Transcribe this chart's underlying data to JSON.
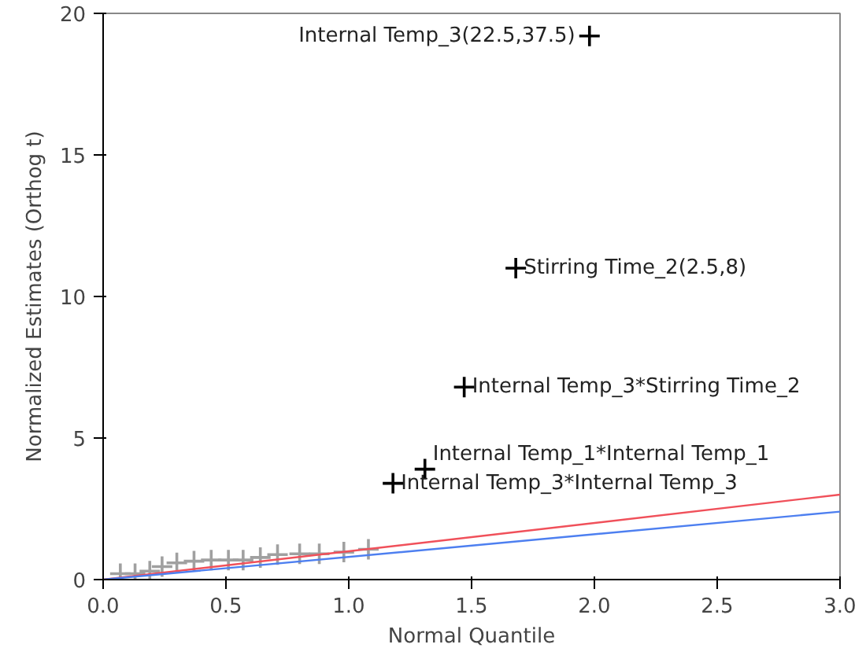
{
  "chart_data": {
    "type": "scatter",
    "xlabel": "Normal Quantile",
    "ylabel": "Normalized Estimates (Orthog t)",
    "xlim": [
      0,
      3
    ],
    "ylim": [
      0,
      20
    ],
    "xticks": [
      {
        "value": 0,
        "label": "0.0"
      },
      {
        "value": 0.5,
        "label": "0.5"
      },
      {
        "value": 1,
        "label": "1.0"
      },
      {
        "value": 1.5,
        "label": "1.5"
      },
      {
        "value": 2,
        "label": "2.0"
      },
      {
        "value": 2.5,
        "label": "2.5"
      },
      {
        "value": 3,
        "label": "3.0"
      }
    ],
    "yticks": [
      0,
      5,
      10,
      15,
      20
    ],
    "grid": false,
    "marker": "cross",
    "series": [
      {
        "color": "#a0a0a0",
        "x": [
          0.07,
          0.13,
          0.19,
          0.24,
          0.3,
          0.37,
          0.44,
          0.51,
          0.57,
          0.64,
          0.71,
          0.8,
          0.88,
          0.98,
          1.08
        ],
        "values": [
          0.21,
          0.21,
          0.3,
          0.46,
          0.59,
          0.65,
          0.69,
          0.69,
          0.69,
          0.78,
          0.88,
          0.91,
          0.91,
          0.97,
          1.07
        ]
      },
      {
        "color": "#000000",
        "x": [
          1.18,
          1.31,
          1.47,
          1.68,
          1.98
        ],
        "values": [
          3.4,
          3.9,
          6.8,
          11.0,
          19.2
        ]
      },
      {
        "type": "line",
        "marker": "none",
        "color": "#f0505a",
        "x": [
          0,
          3
        ],
        "values": [
          0,
          3.0
        ]
      },
      {
        "type": "line",
        "marker": "none",
        "color": "#4d7ff0",
        "x": [
          0,
          3
        ],
        "values": [
          0,
          2.4
        ]
      }
    ],
    "annotations": [
      {
        "text": "Internal Temp_3*Internal Temp_3",
        "x": 1.18,
        "y": 3.4
      },
      {
        "text": "Internal Temp_1*Internal Temp_1",
        "x": 1.31,
        "y": 3.9
      },
      {
        "text": "Internal Temp_3*Stirring Time_2",
        "x": 1.47,
        "y": 6.8
      },
      {
        "text": "Stirring Time_2(2.5,8)",
        "x": 1.68,
        "y": 11.0
      },
      {
        "text": "Internal Temp_3(22.5,37.5)",
        "x": 1.98,
        "y": 19.2
      }
    ]
  }
}
